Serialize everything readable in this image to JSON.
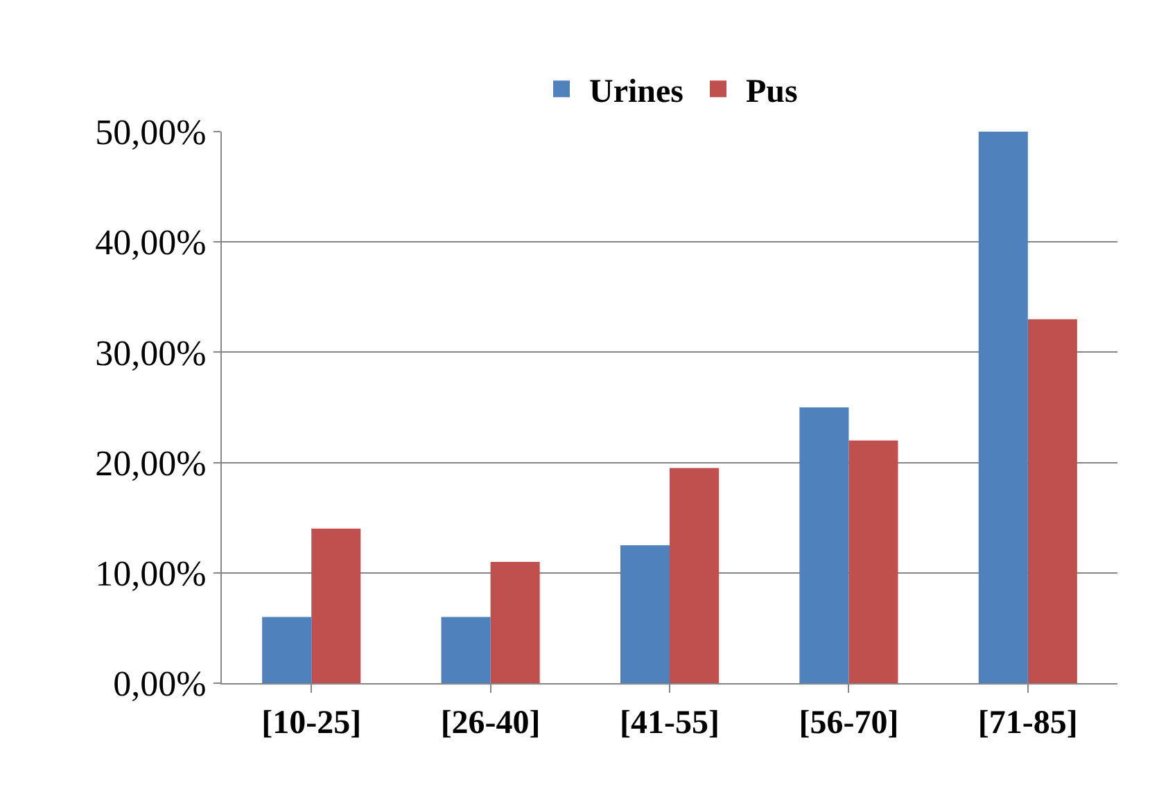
{
  "chart_data": {
    "type": "bar",
    "categories": [
      "[10-25]",
      "[26-40]",
      "[41-55]",
      "[56-70]",
      "[71-85]"
    ],
    "series": [
      {
        "name": "Urines",
        "color": "#4f81bd",
        "values": [
          6,
          6,
          12.5,
          25,
          50
        ]
      },
      {
        "name": "Pus",
        "color": "#c0504d",
        "values": [
          14,
          11,
          19.5,
          22,
          33
        ]
      }
    ],
    "ylim": [
      0,
      50
    ],
    "yticks": [
      {
        "value": 0,
        "label": "0,00%"
      },
      {
        "value": 10,
        "label": "10,00%"
      },
      {
        "value": 20,
        "label": "20,00%"
      },
      {
        "value": 30,
        "label": "30,00%"
      },
      {
        "value": 40,
        "label": "40,00%"
      },
      {
        "value": 50,
        "label": "50,00%"
      }
    ],
    "grid": "y",
    "legend": "top"
  }
}
